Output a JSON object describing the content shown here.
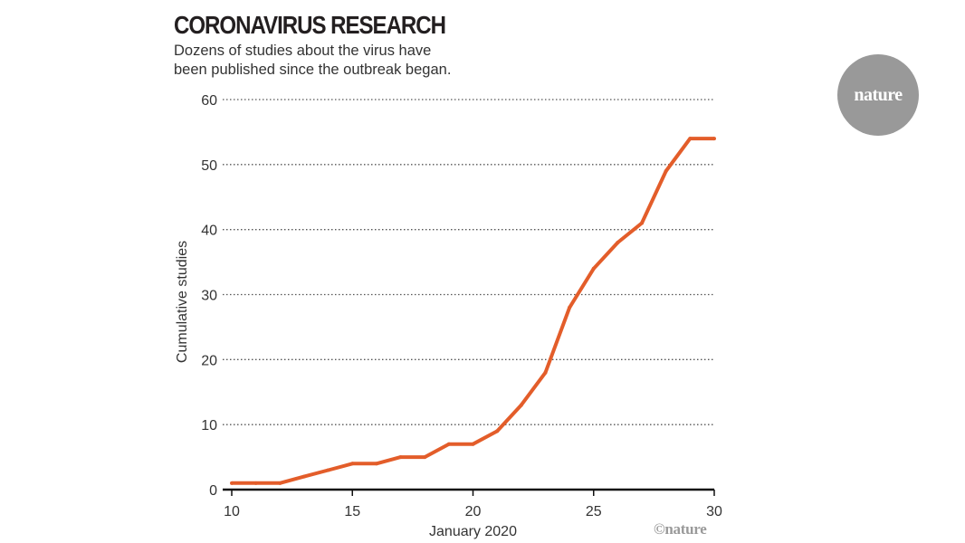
{
  "header": {
    "title": "CORONAVIRUS RESEARCH",
    "subtitle_line1": "Dozens of studies about the virus have",
    "subtitle_line2": "been published since the outbreak began."
  },
  "badge": {
    "label": "nature",
    "color": "#999999"
  },
  "credit": "©nature",
  "colors": {
    "line": "#e35d2a",
    "grid": "#555555",
    "text": "#333333"
  },
  "chart_data": {
    "type": "line",
    "title": "CORONAVIRUS RESEARCH",
    "xlabel": "January 2020",
    "ylabel": "Cumulative studies",
    "xlim": [
      10,
      30
    ],
    "ylim": [
      0,
      60
    ],
    "xticks": [
      10,
      15,
      20,
      25,
      30
    ],
    "yticks": [
      0,
      10,
      20,
      30,
      40,
      50,
      60
    ],
    "grid": true,
    "series": [
      {
        "name": "Cumulative studies",
        "x": [
          10,
          11,
          12,
          13,
          14,
          15,
          16,
          17,
          18,
          19,
          20,
          21,
          22,
          23,
          24,
          25,
          26,
          27,
          28,
          29,
          30
        ],
        "y": [
          1,
          1,
          1,
          2,
          3,
          4,
          4,
          5,
          5,
          7,
          7,
          9,
          13,
          18,
          28,
          34,
          38,
          41,
          49,
          54,
          54
        ]
      }
    ]
  }
}
